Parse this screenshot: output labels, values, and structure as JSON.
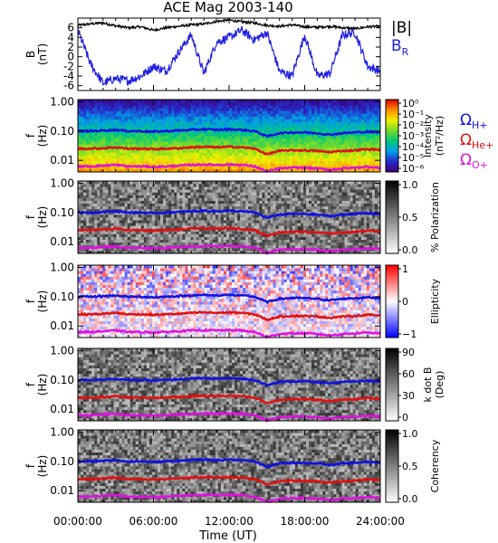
{
  "chart_data": {
    "type": "heatmap",
    "title": "ACE Mag 2003-140",
    "xlabel": "Time (UT)",
    "x_ticks": [
      "00:00:00",
      "06:00:00",
      "12:00:00",
      "18:00:00",
      "24:00:00"
    ],
    "x_range_hours": [
      0,
      24
    ],
    "gyro_labels": [
      {
        "text": "Ω",
        "sub": "H+",
        "color": "#1010e0"
      },
      {
        "text": "Ω",
        "sub": "He+",
        "color": "#e01010"
      },
      {
        "text": "Ω",
        "sub": "O+",
        "color": "#e010e0"
      }
    ],
    "panels": [
      {
        "type": "line",
        "ylabel": [
          "B",
          "(nT)"
        ],
        "ylim": [
          -7,
          8
        ],
        "y_ticks": [
          "6",
          "4",
          "2",
          "0",
          "-2",
          "-4",
          "-6"
        ],
        "y_tick_values": [
          6,
          4,
          2,
          0,
          -2,
          -4,
          -6
        ],
        "series": [
          {
            "name": "|B|",
            "color": "#000000",
            "x": [
              0,
              1,
              2,
              3,
              4,
              5,
              6,
              7,
              8,
              9,
              10,
              11,
              12,
              13,
              14,
              15,
              16,
              17,
              18,
              19,
              20,
              21,
              22,
              23,
              24
            ],
            "y": [
              6.5,
              6.8,
              7.0,
              6.4,
              6.0,
              6.2,
              5.5,
              6.0,
              6.3,
              6.6,
              6.8,
              7.3,
              7.6,
              7.2,
              7.0,
              6.5,
              6.3,
              6.6,
              6.2,
              6.1,
              6.3,
              6.0,
              5.8,
              6.2,
              6.3
            ]
          },
          {
            "name": "B",
            "sub": "R",
            "color": "#2020e0",
            "x": [
              0,
              1,
              2,
              3,
              4,
              5,
              6,
              7,
              8,
              9,
              10,
              11,
              12,
              13,
              14,
              15,
              16,
              17,
              18,
              19,
              20,
              21,
              22,
              23,
              24
            ],
            "y": [
              5.5,
              -1.5,
              -5.5,
              -4.5,
              -5.0,
              -4.0,
              -2.0,
              -3.0,
              1.0,
              4.5,
              -3.5,
              3.0,
              4.0,
              5.5,
              3.5,
              5.0,
              -3.0,
              -4.0,
              4.5,
              -4.0,
              -3.5,
              4.5,
              5.0,
              -2.0,
              -3.0
            ]
          }
        ]
      },
      {
        "type": "heatmap",
        "ylabel": [
          "f",
          "(Hz)"
        ],
        "ylim": [
          0.004,
          1.2
        ],
        "y_ticks": [
          "1.00",
          "0.10",
          "0.01"
        ],
        "colorbar": {
          "label": [
            "Intensity",
            "(nT²/Hz)"
          ],
          "ticks": [
            "10⁰",
            "10⁻¹",
            "10⁻²",
            "10⁻³",
            "10⁻⁴",
            "10⁻⁵",
            "10⁻⁶"
          ],
          "map": "rainbow"
        }
      },
      {
        "type": "heatmap",
        "ylabel": [
          "f",
          "(Hz)"
        ],
        "ylim": [
          0.004,
          1.2
        ],
        "y_ticks": [
          "1.00",
          "0.10",
          "0.01"
        ],
        "colorbar": {
          "label": [
            "% Polarization"
          ],
          "ticks": [
            "1.0",
            "0.5",
            "0.0"
          ],
          "map": "gray"
        }
      },
      {
        "type": "heatmap",
        "ylabel": [
          "f",
          "(Hz)"
        ],
        "ylim": [
          0.004,
          1.2
        ],
        "y_ticks": [
          "1.00",
          "0.10",
          "0.01"
        ],
        "colorbar": {
          "label": [
            "Ellipticity"
          ],
          "ticks": [
            "1",
            "0",
            "−1"
          ],
          "map": "bwr"
        }
      },
      {
        "type": "heatmap",
        "ylabel": [
          "f",
          "(Hz)"
        ],
        "ylim": [
          0.004,
          1.2
        ],
        "y_ticks": [
          "1.00",
          "0.10",
          "0.01"
        ],
        "colorbar": {
          "label": [
            "k dot B",
            "(Deg)"
          ],
          "ticks": [
            "90",
            "60",
            "30",
            "0"
          ],
          "map": "gray"
        }
      },
      {
        "type": "heatmap",
        "ylabel": [
          "f",
          "(Hz)"
        ],
        "ylim": [
          0.004,
          1.2
        ],
        "y_ticks": [
          "1.00",
          "0.10",
          "0.01"
        ],
        "colorbar": {
          "label": [
            "Coherency"
          ],
          "ticks": [
            "1.0",
            "0.5",
            "0.0"
          ],
          "map": "gray"
        }
      }
    ],
    "gyrofrequency_series": [
      {
        "name": "H+",
        "color": "#1010e0",
        "x": [
          0,
          1,
          2,
          3,
          4,
          5,
          6,
          7,
          8,
          9,
          10,
          11,
          12,
          13,
          14,
          15,
          16,
          17,
          18,
          19,
          20,
          21,
          22,
          23,
          24
        ],
        "y": [
          0.1,
          0.1,
          0.105,
          0.11,
          0.1,
          0.1,
          0.095,
          0.1,
          0.105,
          0.11,
          0.115,
          0.11,
          0.115,
          0.11,
          0.1,
          0.065,
          0.085,
          0.09,
          0.09,
          0.085,
          0.075,
          0.085,
          0.09,
          0.095,
          0.09
        ]
      },
      {
        "name": "He+",
        "color": "#e01010",
        "x": [
          0,
          1,
          2,
          3,
          4,
          5,
          6,
          7,
          8,
          9,
          10,
          11,
          12,
          13,
          14,
          15,
          16,
          17,
          18,
          19,
          20,
          21,
          22,
          23,
          24
        ],
        "y": [
          0.025,
          0.025,
          0.026,
          0.028,
          0.025,
          0.025,
          0.024,
          0.025,
          0.026,
          0.028,
          0.029,
          0.028,
          0.029,
          0.028,
          0.025,
          0.016,
          0.021,
          0.022,
          0.022,
          0.021,
          0.019,
          0.021,
          0.022,
          0.024,
          0.023
        ]
      },
      {
        "name": "O+",
        "color": "#e010e0",
        "x": [
          0,
          1,
          2,
          3,
          4,
          5,
          6,
          7,
          8,
          9,
          10,
          11,
          12,
          13,
          14,
          15,
          16,
          17,
          18,
          19,
          20,
          21,
          22,
          23,
          24
        ],
        "y": [
          0.0062,
          0.0062,
          0.0066,
          0.007,
          0.0062,
          0.0062,
          0.006,
          0.0062,
          0.0066,
          0.007,
          0.0072,
          0.007,
          0.0072,
          0.007,
          0.0062,
          0.0041,
          0.0053,
          0.0056,
          0.0056,
          0.0053,
          0.0047,
          0.0053,
          0.0056,
          0.006,
          0.0056
        ]
      }
    ],
    "grid": false
  }
}
